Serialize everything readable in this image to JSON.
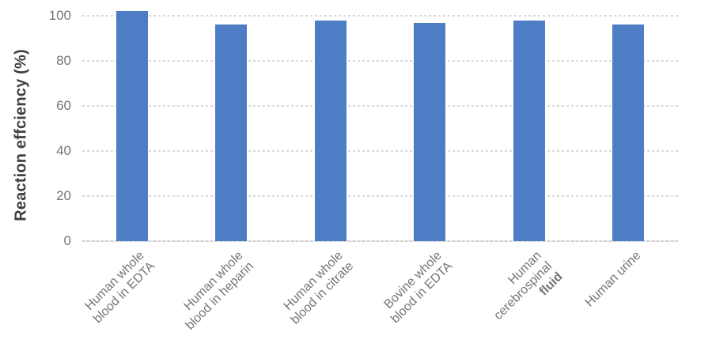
{
  "chart_data": {
    "type": "bar",
    "title": "",
    "ylabel": "Reaction effciency (%)",
    "xlabel": "",
    "ylim": [
      0,
      100
    ],
    "yticks": [
      0,
      20,
      40,
      60,
      80,
      100
    ],
    "grid": "horizontal dashed gridlines",
    "legend_position": "none",
    "bar_color": "#4d7dc5",
    "categories": [
      {
        "label": "Human whole blood in EDTA",
        "lines": [
          {
            "text": "Human whole"
          },
          {
            "text": "blood in EDTA"
          }
        ]
      },
      {
        "label": "Human whole blood in heparin",
        "lines": [
          {
            "text": "Human whole"
          },
          {
            "text": "blood in heparin"
          }
        ]
      },
      {
        "label": "Human whole blood in citrate",
        "lines": [
          {
            "text": "Human whole"
          },
          {
            "text": "blood in citrate"
          }
        ]
      },
      {
        "label": "Bovine whole blood in EDTA",
        "lines": [
          {
            "text": "Bovine whole"
          },
          {
            "text": "blood in EDTA"
          }
        ]
      },
      {
        "label": "Human cerebrospinal fluid",
        "lines": [
          {
            "text": "Human"
          },
          {
            "text": "cerebrospinal"
          },
          {
            "text": "fluid",
            "bold": true
          }
        ]
      },
      {
        "label": "Human urine",
        "lines": [
          {
            "text": "Human urine"
          }
        ]
      }
    ],
    "values": [
      102,
      96,
      98,
      97,
      98,
      96
    ]
  },
  "colors": {
    "bar": "#4d7dc5",
    "gridline": "#d9d9d9",
    "zero_line": "#cfcfcf",
    "tick_label": "#757575",
    "axis_title": "#3f3f3f",
    "background": "#ffffff"
  }
}
